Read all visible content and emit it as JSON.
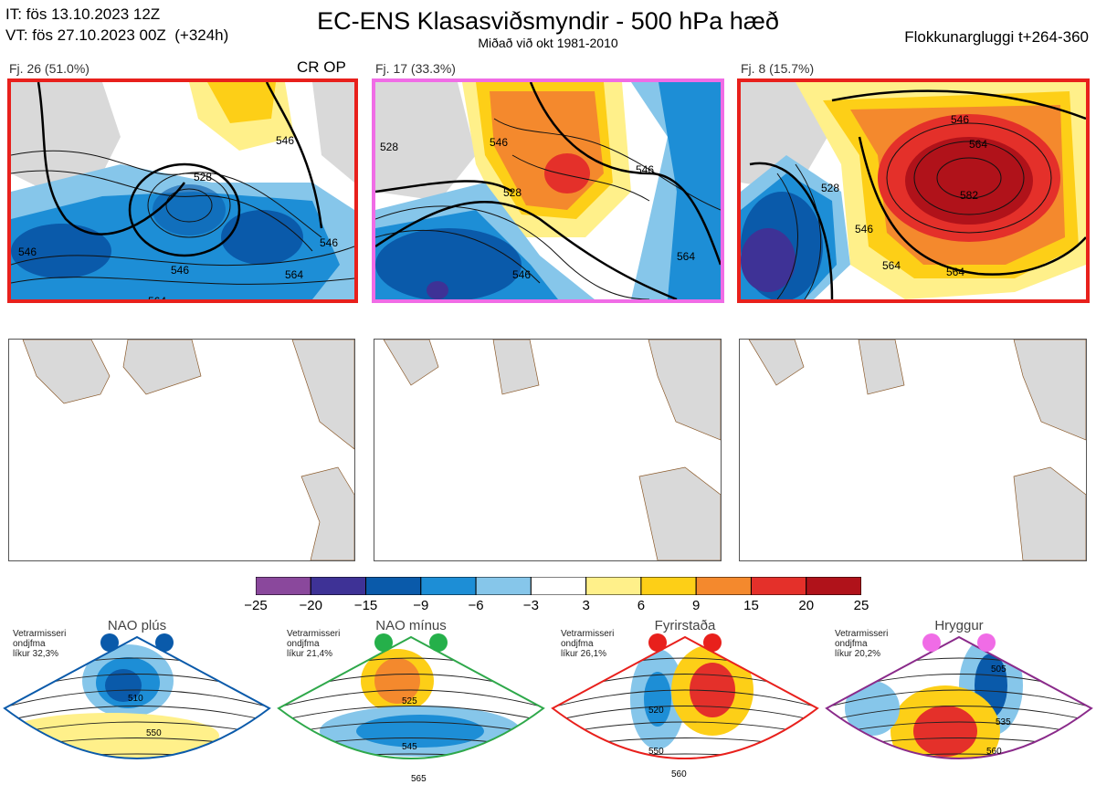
{
  "header": {
    "it_line": "IT: fös 13.10.2023 12Z",
    "vt_line": "VT: fös 27.10.2023 00Z  (+324h)",
    "title": "EC-ENS Klasasviðsmyndir - 500 hPa hæð",
    "subtitle": "Miðað við okt 1981-2010",
    "window": "Flokkunargluggi t+264-360"
  },
  "clusters": [
    {
      "label": "Fj. 26 (51.0%)",
      "tag": "CR OP",
      "border_color": "#e8201c",
      "contour_labels": [
        "546",
        "528",
        "546",
        "546",
        "546",
        "564",
        "564"
      ]
    },
    {
      "label": "Fj. 17 (33.3%)",
      "tag": "",
      "border_color": "#f06ce6",
      "contour_labels": [
        "546",
        "528",
        "546",
        "528",
        "546",
        "564"
      ]
    },
    {
      "label": "Fj. 8 (15.7%)",
      "tag": "",
      "border_color": "#e8201c",
      "contour_labels": [
        "546",
        "564",
        "582",
        "528",
        "546",
        "564",
        "564"
      ]
    }
  ],
  "chart_data": {
    "type": "heatmap",
    "title": "EC-ENS Klasasviðsmyndir - 500 hPa hæð",
    "colorbar": {
      "ticks": [
        "−25",
        "−20",
        "−15",
        "−9",
        "−6",
        "−3",
        "3",
        "6",
        "9",
        "15",
        "20",
        "25"
      ],
      "colors": [
        "#8a489c",
        "#3e3296",
        "#0a5aaa",
        "#1d8ed6",
        "#86c6ea",
        "#ffffff",
        "#fff08a",
        "#fdcf17",
        "#f4892d",
        "#e4302a",
        "#b0121a"
      ]
    }
  },
  "regimes": [
    {
      "name": "NAO plús",
      "info": "Vetrarmisseri\nondjfma\nlíkur 32,3%",
      "border_color": "#0a5aaa",
      "dot_color": "#0a5aaa",
      "contour_labels": [
        "510",
        "550"
      ]
    },
    {
      "name": "NAO mínus",
      "info": "Vetrarmisseri\nondjfma\nlíkur 21,4%",
      "border_color": "#2ea84a",
      "dot_color": "#25b04a",
      "contour_labels": [
        "525",
        "545",
        "565"
      ]
    },
    {
      "name": "Fyrirstaða",
      "info": "Vetrarmisseri\nondjfma\nlíkur 26,1%",
      "border_color": "#e8201c",
      "dot_color": "#e8201c",
      "contour_labels": [
        "520",
        "550",
        "560"
      ]
    },
    {
      "name": "Hryggur",
      "info": "Vetrarmisseri\nondjfma\nlíkur 20,2%",
      "border_color": "#8a2a8a",
      "dot_color": "#f06ce6",
      "contour_labels": [
        "505",
        "535",
        "560"
      ]
    }
  ]
}
